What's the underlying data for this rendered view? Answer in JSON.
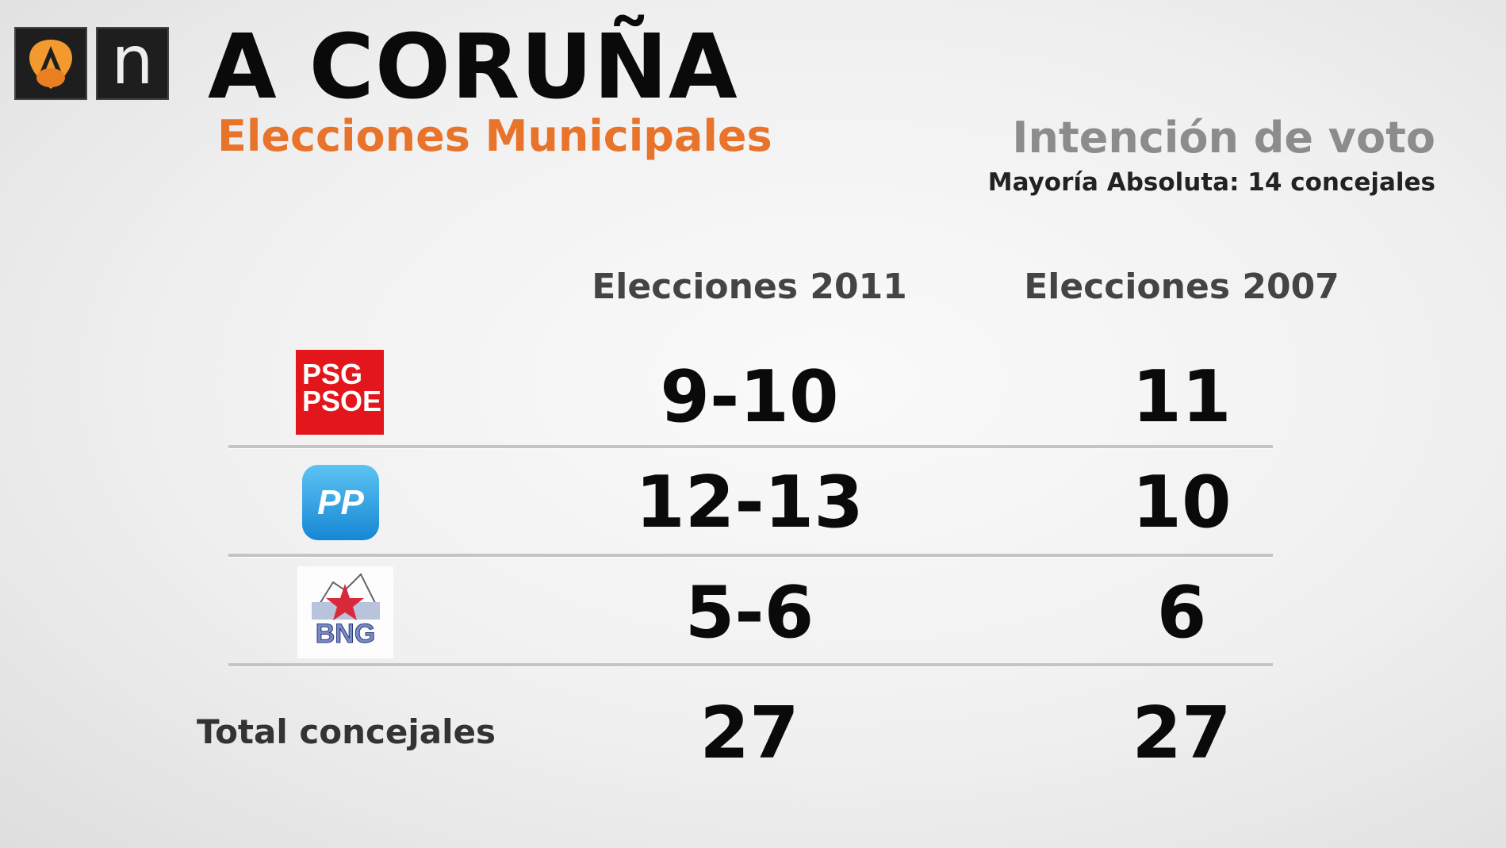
{
  "header": {
    "logo_text": "n",
    "title": "A CORUÑA",
    "subtitle": "Elecciones Municipales",
    "right_title": "Intención de voto",
    "majority": "Mayoría Absoluta: 14 concejales"
  },
  "columns": [
    "Elecciones 2011",
    "Elecciones 2007"
  ],
  "rows": [
    {
      "party": "PSG PSOE",
      "logo_line1": "PSG",
      "logo_line2": "PSOE",
      "color": "#e3161b",
      "e2011": "9-10",
      "e2007": "11"
    },
    {
      "party": "PP",
      "logo_text": "PP",
      "color": "#1d9fe0",
      "e2011": "12-13",
      "e2007": "10"
    },
    {
      "party": "BNG",
      "logo_text": "BNG",
      "color": "#d9283a",
      "e2011": "5-6",
      "e2007": "6"
    }
  ],
  "total": {
    "label": "Total concejales",
    "e2011": "27",
    "e2007": "27"
  },
  "colors": {
    "accent": "#e8732a",
    "text": "#0a0a0a",
    "muted": "#8c8c8c"
  }
}
